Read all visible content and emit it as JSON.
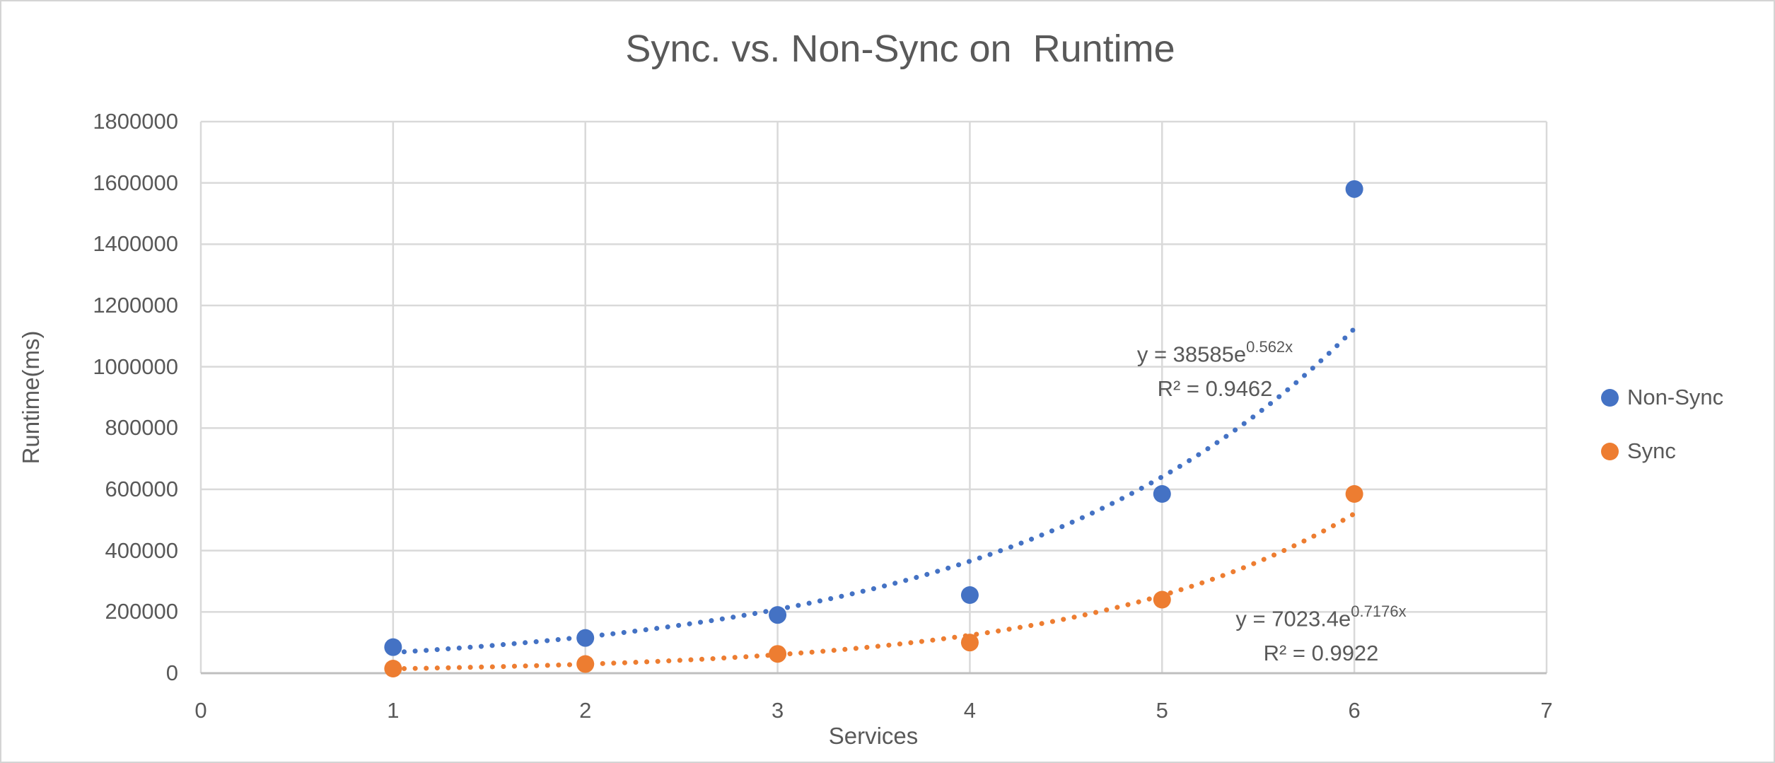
{
  "figure": {
    "title": "Sync. vs. Non-Sync on  Runtime"
  },
  "chart_data": {
    "type": "scatter",
    "title": "Sync. vs. Non-Sync on  Runtime",
    "xlabel": "Services",
    "ylabel": "Runtime(ms)",
    "xlim": [
      0,
      7
    ],
    "ylim": [
      0,
      1800000
    ],
    "x_ticks": [
      0,
      1,
      2,
      3,
      4,
      5,
      6,
      7
    ],
    "y_ticks": [
      0,
      200000,
      400000,
      600000,
      800000,
      1000000,
      1200000,
      1400000,
      1600000,
      1800000
    ],
    "grid": true,
    "legend_position": "right",
    "x": [
      1,
      2,
      3,
      4,
      5,
      6
    ],
    "series": [
      {
        "name": "Non-Sync",
        "color": "#4472C4",
        "values": [
          85000,
          115000,
          190000,
          255000,
          585000,
          1580000
        ],
        "trendline": {
          "type": "exponential",
          "a": 38585,
          "b": 0.562,
          "equation_base": "y = 38585e",
          "equation_exponent": "0.562x",
          "r2_label": "R² = 0.9462",
          "range": [
            1,
            6
          ]
        }
      },
      {
        "name": "Sync",
        "color": "#ED7D31",
        "values": [
          15000,
          30000,
          63000,
          100000,
          240000,
          585000
        ],
        "trendline": {
          "type": "exponential",
          "a": 7023.4,
          "b": 0.7176,
          "equation_base": "y = 7023.4e",
          "equation_exponent": "0.7176x",
          "r2_label": "R² = 0.9922",
          "range": [
            1,
            6
          ]
        }
      }
    ]
  },
  "colors": {
    "text": "#595959",
    "gridline": "#D9D9D9",
    "axis_line": "#BFBFBF",
    "background": "#FFFFFF"
  }
}
